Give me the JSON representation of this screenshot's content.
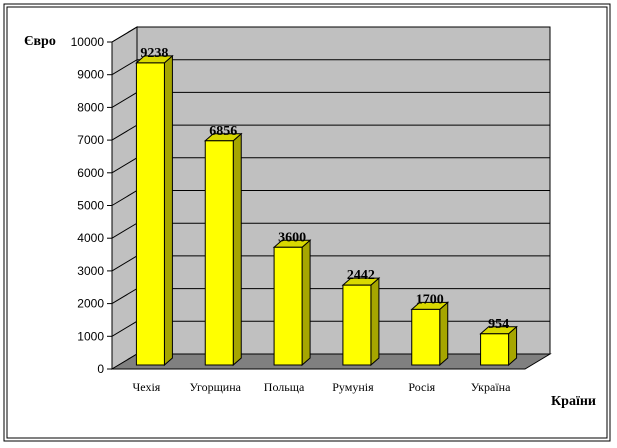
{
  "chart_data": {
    "type": "bar",
    "categories": [
      "Чехія",
      "Угорщина",
      "Польща",
      "Румунія",
      "Росія",
      "Україна"
    ],
    "values": [
      9238,
      6856,
      3600,
      2442,
      1700,
      954
    ],
    "data_labels": [
      "9238",
      "6856",
      "3600",
      "2442",
      "1700",
      "954"
    ],
    "ylabel": "Євро",
    "xlabel": "Країни",
    "ylim": [
      0,
      10000
    ],
    "yticks": [
      "0",
      "1000",
      "2000",
      "3000",
      "4000",
      "5000",
      "6000",
      "7000",
      "8000",
      "9000",
      "10000"
    ],
    "grid": true,
    "legend": "none",
    "style": "3d-column",
    "colors": {
      "bar_front": "#ffff00",
      "bar_side": "#a6a600",
      "bar_top": "#d9d900",
      "wall": "#c0c0c0",
      "floor": "#808080",
      "border": "#000000"
    }
  }
}
